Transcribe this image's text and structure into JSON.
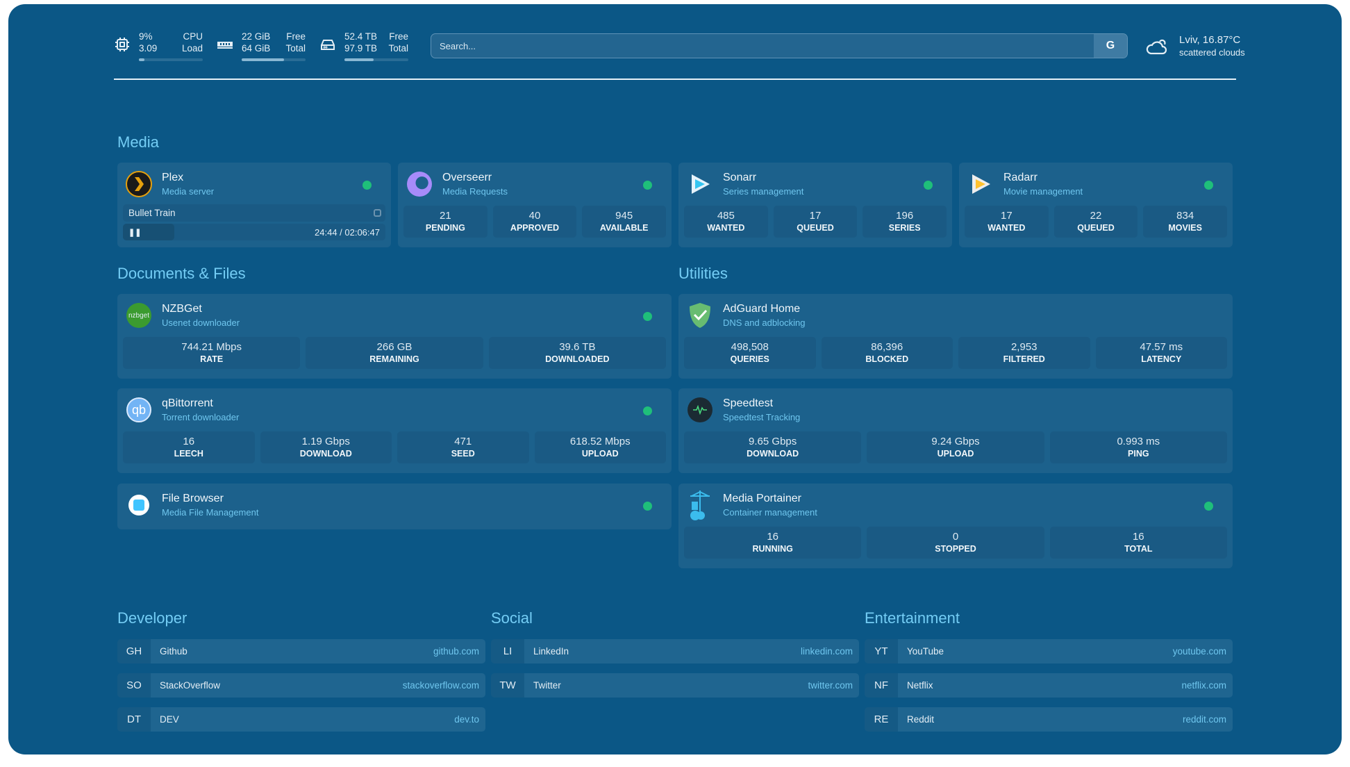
{
  "topbar": {
    "cpu": {
      "icon": "cpu-icon",
      "v1": "9%",
      "v2": "3.09",
      "l1": "CPU",
      "l2": "Load",
      "usage": 0.09
    },
    "memory": {
      "icon": "memory-icon",
      "v1": "22 GiB",
      "v2": "64 GiB",
      "l1": "Free",
      "l2": "Total",
      "usage": 0.66
    },
    "disk": {
      "icon": "disk-icon",
      "v1": "52.4 TB",
      "v2": "97.9 TB",
      "l1": "Free",
      "l2": "Total",
      "usage": 0.46
    },
    "search": {
      "placeholder": "Search...",
      "button": "G"
    },
    "weather": {
      "icon": "cloud-icon",
      "location": "Lviv, 16.87°C",
      "condition": "scattered clouds"
    }
  },
  "colors": {
    "background": "#0b5786",
    "card": "#1c618c",
    "accent": "#74cdf5",
    "status_ok": "#1fbf7a"
  },
  "media": {
    "title": "Media",
    "plex": {
      "name": "Plex",
      "desc": "Media server",
      "now_playing": "Bullet Train",
      "time": "24:44 / 02:06:47",
      "progress": 0.196
    },
    "cards": [
      {
        "name": "Overseerr",
        "desc": "Media Requests",
        "stats": [
          {
            "v": "21",
            "k": "PENDING"
          },
          {
            "v": "40",
            "k": "APPROVED"
          },
          {
            "v": "945",
            "k": "AVAILABLE"
          }
        ]
      },
      {
        "name": "Sonarr",
        "desc": "Series management",
        "stats": [
          {
            "v": "485",
            "k": "WANTED"
          },
          {
            "v": "17",
            "k": "QUEUED"
          },
          {
            "v": "196",
            "k": "SERIES"
          }
        ]
      },
      {
        "name": "Radarr",
        "desc": "Movie management",
        "stats": [
          {
            "v": "17",
            "k": "WANTED"
          },
          {
            "v": "22",
            "k": "QUEUED"
          },
          {
            "v": "834",
            "k": "MOVIES"
          }
        ]
      }
    ]
  },
  "documents": {
    "title": "Documents & Files",
    "cards": [
      {
        "name": "NZBGet",
        "desc": "Usenet downloader",
        "icon_text": "nzbget",
        "stats": [
          {
            "v": "744.21 Mbps",
            "k": "RATE"
          },
          {
            "v": "266 GB",
            "k": "REMAINING"
          },
          {
            "v": "39.6 TB",
            "k": "DOWNLOADED"
          }
        ]
      },
      {
        "name": "qBittorrent",
        "desc": "Torrent downloader",
        "icon_text": "qb",
        "stats": [
          {
            "v": "16",
            "k": "LEECH"
          },
          {
            "v": "1.19 Gbps",
            "k": "DOWNLOAD"
          },
          {
            "v": "471",
            "k": "SEED"
          },
          {
            "v": "618.52 Mbps",
            "k": "UPLOAD"
          }
        ]
      },
      {
        "name": "File Browser",
        "desc": "Media File Management",
        "stats": []
      }
    ]
  },
  "utilities": {
    "title": "Utilities",
    "cards": [
      {
        "name": "AdGuard Home",
        "desc": "DNS and adblocking",
        "stats": [
          {
            "v": "498,508",
            "k": "QUERIES"
          },
          {
            "v": "86,396",
            "k": "BLOCKED"
          },
          {
            "v": "2,953",
            "k": "FILTERED"
          },
          {
            "v": "47.57 ms",
            "k": "LATENCY"
          }
        ]
      },
      {
        "name": "Speedtest",
        "desc": "Speedtest Tracking",
        "stats": [
          {
            "v": "9.65 Gbps",
            "k": "DOWNLOAD"
          },
          {
            "v": "9.24 Gbps",
            "k": "UPLOAD"
          },
          {
            "v": "0.993 ms",
            "k": "PING"
          }
        ]
      },
      {
        "name": "Media Portainer",
        "desc": "Container management",
        "stats": [
          {
            "v": "16",
            "k": "RUNNING"
          },
          {
            "v": "0",
            "k": "STOPPED"
          },
          {
            "v": "16",
            "k": "TOTAL"
          }
        ]
      }
    ]
  },
  "bookmarks": [
    {
      "title": "Developer",
      "items": [
        {
          "abbr": "GH",
          "name": "Github",
          "url": "github.com"
        },
        {
          "abbr": "SO",
          "name": "StackOverflow",
          "url": "stackoverflow.com"
        },
        {
          "abbr": "DT",
          "name": "DEV",
          "url": "dev.to"
        }
      ]
    },
    {
      "title": "Social",
      "items": [
        {
          "abbr": "LI",
          "name": "LinkedIn",
          "url": "linkedin.com"
        },
        {
          "abbr": "TW",
          "name": "Twitter",
          "url": "twitter.com"
        }
      ]
    },
    {
      "title": "Entertainment",
      "items": [
        {
          "abbr": "YT",
          "name": "YouTube",
          "url": "youtube.com"
        },
        {
          "abbr": "NF",
          "name": "Netflix",
          "url": "netflix.com"
        },
        {
          "abbr": "RE",
          "name": "Reddit",
          "url": "reddit.com"
        }
      ]
    }
  ]
}
